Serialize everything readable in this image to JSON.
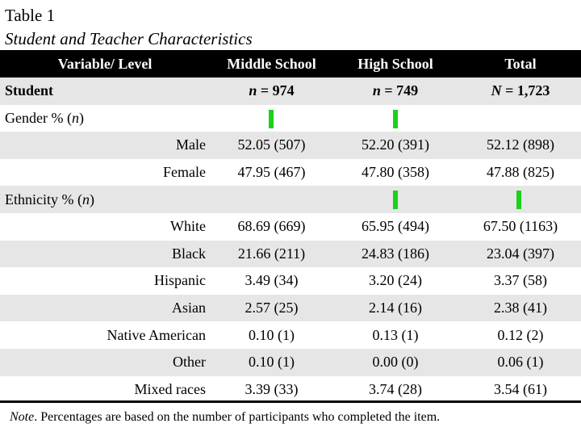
{
  "caption": {
    "number": "Table 1",
    "title": "Student and Teacher Characteristics"
  },
  "header": {
    "variable": "Variable/ Level",
    "middle": "Middle School",
    "high": "High School",
    "total": "Total"
  },
  "student": {
    "label": "Student",
    "n_middle_sym": "n",
    "n_middle_val": "= 974",
    "n_high_sym": "n",
    "n_high_val": "= 749",
    "n_total_sym": "N",
    "n_total_val": "= 1,723"
  },
  "gender": {
    "label": "Gender % (",
    "label_n": "n",
    "label_end": ")",
    "rows": [
      {
        "level": "Male",
        "middle": "52.05 (507)",
        "high": "52.20 (391)",
        "total": "52.12 (898)"
      },
      {
        "level": "Female",
        "middle": "47.95 (467)",
        "high": "47.80 (358)",
        "total": "47.88 (825)"
      }
    ]
  },
  "ethnicity": {
    "label": "Ethnicity % (",
    "label_n": "n",
    "label_end": ")",
    "rows": [
      {
        "level": "White",
        "middle": "68.69 (669)",
        "high": "65.95 (494)",
        "total": "67.50 (1163)"
      },
      {
        "level": "Black",
        "middle": "21.66 (211)",
        "high": "24.83 (186)",
        "total": "23.04 (397)"
      },
      {
        "level": "Hispanic",
        "middle": "3.49 (34)",
        "high": "3.20 (24)",
        "total": "3.37 (58)"
      },
      {
        "level": "Asian",
        "middle": "2.57 (25)",
        "high": "2.14 (16)",
        "total": "2.38 (41)"
      },
      {
        "level": "Native American",
        "middle": "0.10 (1)",
        "high": "0.13 (1)",
        "total": "0.12 (2)"
      },
      {
        "level": "Other",
        "middle": "0.10 (1)",
        "high": "0.00 (0)",
        "total": "0.06 (1)"
      },
      {
        "level": "Mixed races",
        "middle": "3.39 (33)",
        "high": "3.74 (28)",
        "total": "3.54 (61)"
      }
    ]
  },
  "note": {
    "label": "Note",
    "text": ". Percentages are based on the number of participants who completed the item."
  },
  "colors": {
    "header_bg": "#000000",
    "stripe": "#e6e6e6",
    "marker": "#1ad21a"
  }
}
